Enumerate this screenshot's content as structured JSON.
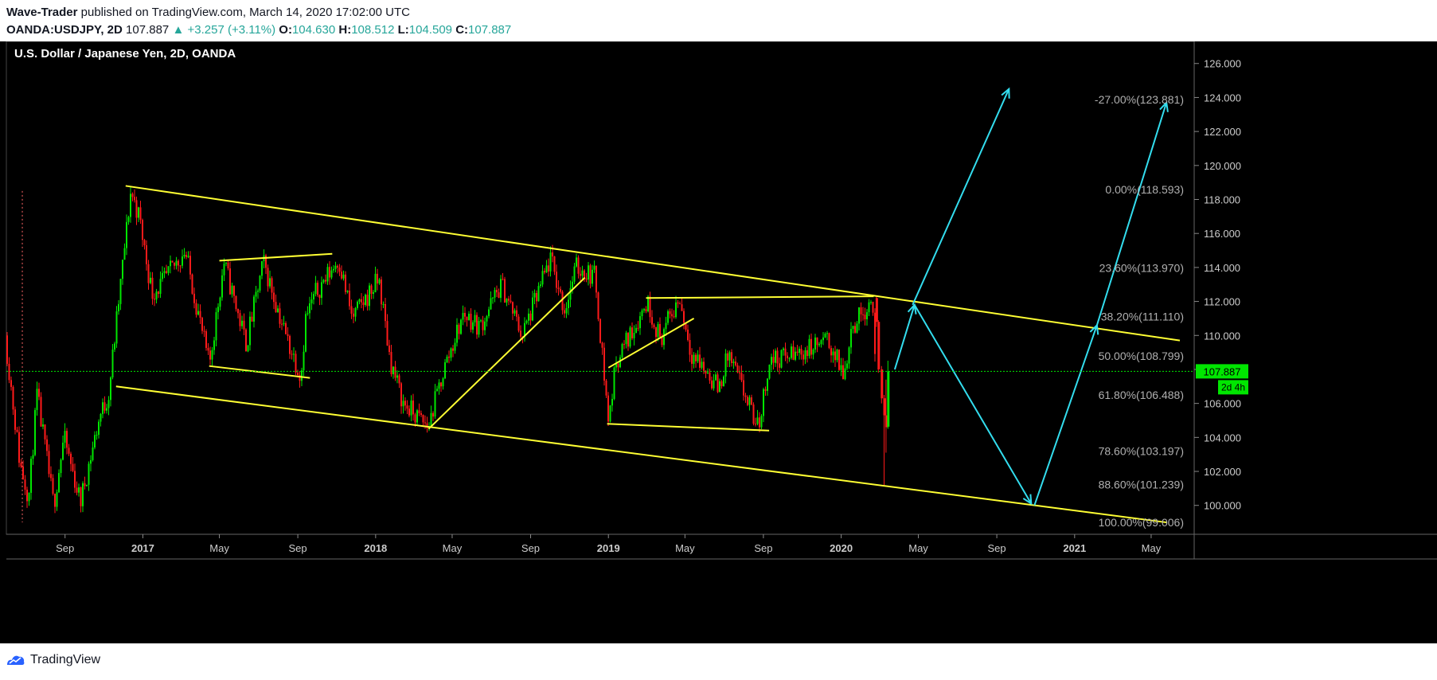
{
  "header": {
    "author": "Wave-Trader",
    "published_text": "published on TradingView.com, March 14, 2020 17:02:00 UTC",
    "symbol_tf": "OANDA:USDJPY, 2D",
    "last": "107.887",
    "change_arrow": "▲",
    "change": "+3.257 (+3.11%)",
    "o_label": "O:",
    "o_value": "104.630",
    "h_label": "H:",
    "h_value": "108.512",
    "l_label": "L:",
    "l_value": "104.509",
    "c_label": "C:",
    "c_value": "107.887"
  },
  "footer": {
    "brand": "TradingView",
    "logo_icon": "tradingview-logo-icon"
  },
  "colors": {
    "background": "#000000",
    "up_candle": "#00e600",
    "down_candle": "#ff1a1a",
    "trendline": "#ffff33",
    "projection": "#33ddee",
    "price_line": "#00e600",
    "fib_text": "#b0b0b0",
    "axis_text": "#cccccc"
  },
  "chart_data": {
    "type": "candlestick",
    "title": "U.S. Dollar / Japanese Yen, 2D, OANDA",
    "y_axis": {
      "min": 98.3,
      "max": 127.3,
      "ticks": [
        "126.000",
        "124.000",
        "122.000",
        "120.000",
        "118.000",
        "116.000",
        "114.000",
        "112.000",
        "110.000",
        "108.000",
        "106.000",
        "104.000",
        "102.000",
        "100.000"
      ]
    },
    "x_axis": {
      "ticks": [
        {
          "label": "Sep",
          "date": "2016-09-01",
          "bold": false
        },
        {
          "label": "2017",
          "date": "2017-01-01",
          "bold": true
        },
        {
          "label": "May",
          "date": "2017-05-01",
          "bold": false
        },
        {
          "label": "Sep",
          "date": "2017-09-01",
          "bold": false
        },
        {
          "label": "2018",
          "date": "2018-01-01",
          "bold": true
        },
        {
          "label": "May",
          "date": "2018-05-01",
          "bold": false
        },
        {
          "label": "Sep",
          "date": "2018-09-01",
          "bold": false
        },
        {
          "label": "2019",
          "date": "2019-01-01",
          "bold": true
        },
        {
          "label": "May",
          "date": "2019-05-01",
          "bold": false
        },
        {
          "label": "Sep",
          "date": "2019-09-01",
          "bold": false
        },
        {
          "label": "2020",
          "date": "2020-01-01",
          "bold": true
        },
        {
          "label": "May",
          "date": "2020-05-01",
          "bold": false
        },
        {
          "label": "Sep",
          "date": "2020-09-01",
          "bold": false
        },
        {
          "label": "2021",
          "date": "2021-01-01",
          "bold": true
        },
        {
          "label": "May",
          "date": "2021-05-01",
          "bold": false
        }
      ]
    },
    "price_path": [
      [
        "2016-06-01",
        110.0
      ],
      [
        "2016-06-24",
        102.5
      ],
      [
        "2016-07-08",
        100.5
      ],
      [
        "2016-07-21",
        106.5
      ],
      [
        "2016-08-16",
        100.0
      ],
      [
        "2016-09-01",
        104.0
      ],
      [
        "2016-09-27",
        100.2
      ],
      [
        "2016-10-27",
        105.2
      ],
      [
        "2016-11-10",
        106.5
      ],
      [
        "2016-12-15",
        118.5
      ],
      [
        "2016-12-28",
        117.0
      ],
      [
        "2017-01-17",
        112.5
      ],
      [
        "2017-02-01",
        113.0
      ],
      [
        "2017-03-10",
        115.0
      ],
      [
        "2017-04-17",
        108.2
      ],
      [
        "2017-05-10",
        114.3
      ],
      [
        "2017-06-14",
        109.5
      ],
      [
        "2017-07-11",
        114.3
      ],
      [
        "2017-08-15",
        110.0
      ],
      [
        "2017-09-08",
        107.6
      ],
      [
        "2017-09-15",
        111.0
      ],
      [
        "2017-10-01",
        112.5
      ],
      [
        "2017-11-06",
        114.5
      ],
      [
        "2017-11-27",
        111.0
      ],
      [
        "2018-01-08",
        113.3
      ],
      [
        "2018-01-26",
        108.5
      ],
      [
        "2018-02-15",
        106.0
      ],
      [
        "2018-03-26",
        104.6
      ],
      [
        "2018-04-20",
        108.0
      ],
      [
        "2018-05-21",
        111.3
      ],
      [
        "2018-06-15",
        110.5
      ],
      [
        "2018-07-19",
        113.0
      ],
      [
        "2018-08-21",
        110.0
      ],
      [
        "2018-10-04",
        114.5
      ],
      [
        "2018-10-26",
        111.5
      ],
      [
        "2018-11-13",
        114.0
      ],
      [
        "2018-12-13",
        113.5
      ],
      [
        "2019-01-03",
        104.9
      ],
      [
        "2019-01-15",
        108.5
      ],
      [
        "2019-03-05",
        112.0
      ],
      [
        "2019-03-25",
        109.8
      ],
      [
        "2019-04-24",
        112.2
      ],
      [
        "2019-05-13",
        109.0
      ],
      [
        "2019-06-25",
        106.9
      ],
      [
        "2019-07-10",
        108.9
      ],
      [
        "2019-08-26",
        104.5
      ],
      [
        "2019-09-12",
        108.5
      ],
      [
        "2019-10-31",
        109.0
      ],
      [
        "2019-12-13",
        109.7
      ],
      [
        "2020-01-08",
        107.6
      ],
      [
        "2020-01-17",
        110.3
      ],
      [
        "2020-02-20",
        112.2
      ],
      [
        "2020-03-09",
        101.2
      ],
      [
        "2020-03-13",
        107.887
      ]
    ],
    "current_price": {
      "value": "107.887",
      "countdown": "2d 4h"
    },
    "trendlines": [
      {
        "from": [
          "2016-12-05",
          118.8
        ],
        "to": [
          "2021-06-15",
          109.7
        ]
      },
      {
        "from": [
          "2016-11-20",
          107.0
        ],
        "to": [
          "2021-05-25",
          99.0
        ]
      },
      {
        "from": [
          "2017-05-01",
          114.4
        ],
        "to": [
          "2017-10-25",
          114.8
        ]
      },
      {
        "from": [
          "2017-04-15",
          108.2
        ],
        "to": [
          "2017-09-20",
          107.5
        ]
      },
      {
        "from": [
          "2018-03-25",
          104.5
        ],
        "to": [
          "2018-11-25",
          113.4
        ]
      },
      {
        "from": [
          "2019-01-01",
          108.1
        ],
        "to": [
          "2019-05-15",
          111.0
        ]
      },
      {
        "from": [
          "2019-03-01",
          112.2
        ],
        "to": [
          "2020-02-21",
          112.3
        ]
      },
      {
        "from": [
          "2018-12-30",
          104.8
        ],
        "to": [
          "2019-09-10",
          104.4
        ]
      }
    ],
    "projections": [
      {
        "points": [
          [
            "2020-03-25",
            108.0
          ],
          [
            "2020-04-25",
            111.8
          ]
        ]
      },
      {
        "points": [
          [
            "2020-04-22",
            111.8
          ],
          [
            "2020-09-20",
            124.5
          ]
        ]
      },
      {
        "points": [
          [
            "2020-04-25",
            111.8
          ],
          [
            "2020-10-25",
            100.1
          ]
        ]
      },
      {
        "points": [
          [
            "2020-10-30",
            100.0
          ],
          [
            "2021-02-05",
            110.6
          ]
        ]
      },
      {
        "points": [
          [
            "2021-02-05",
            110.6
          ],
          [
            "2021-05-25",
            123.7
          ]
        ]
      }
    ],
    "fib_levels": [
      {
        "label": "-27.00%(123.881)",
        "price": 123.881
      },
      {
        "label": "0.00%(118.593)",
        "price": 118.593
      },
      {
        "label": "23.60%(113.970)",
        "price": 113.97
      },
      {
        "label": "38.20%(111.110)",
        "price": 111.11
      },
      {
        "label": "50.00%(108.799)",
        "price": 108.799
      },
      {
        "label": "61.80%(106.488)",
        "price": 106.488
      },
      {
        "label": "78.60%(103.197)",
        "price": 103.197
      },
      {
        "label": "88.60%(101.239)",
        "price": 101.239
      },
      {
        "label": "100.00%(99.006)",
        "price": 99.006
      }
    ],
    "dotted_marker": {
      "date": "2016-06-26",
      "from": 118.5,
      "to": 99.0
    }
  }
}
